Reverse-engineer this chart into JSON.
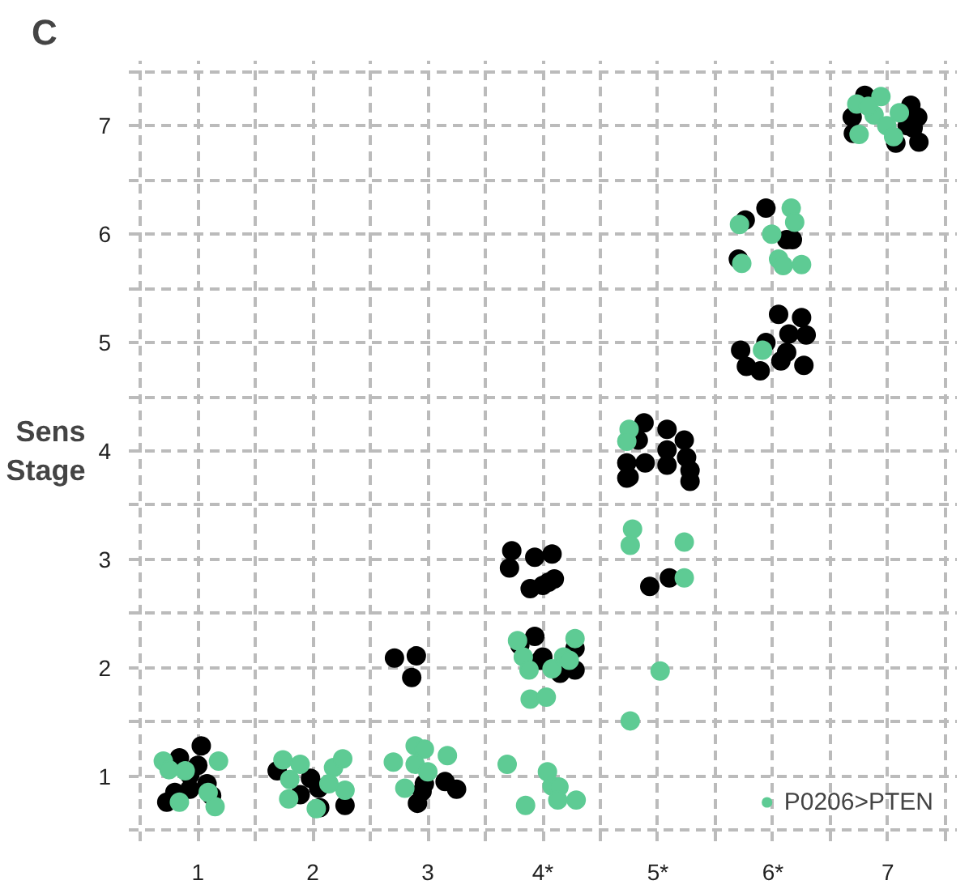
{
  "chart_data": {
    "type": "scatter",
    "title": "C",
    "ylabel": "Sens\nStage",
    "series": [
      {
        "color": "#000000",
        "x": [
          1.03,
          0.84,
          1.0,
          0.93,
          1.08,
          0.8,
          0.93,
          0.73,
          1.12,
          1.69,
          1.98,
          2.05,
          1.89,
          2.06,
          2.28,
          2.71,
          2.9,
          2.86,
          2.97,
          2.95,
          3.15,
          3.25,
          2.91,
          3.73,
          3.93,
          4.08,
          3.71,
          3.89,
          4.0,
          4.1,
          4.05,
          3.93,
          3.8,
          4.0,
          4.28,
          4.15,
          4.28,
          3.98,
          4.93,
          5.1,
          4.88,
          5.08,
          5.23,
          4.83,
          5.08,
          4.73,
          4.89,
          5.08,
          5.25,
          4.75,
          5.28,
          5.28,
          4.73,
          5.94,
          5.76,
          6.12,
          6.17,
          5.7,
          6.05,
          6.25,
          6.14,
          6.29,
          5.94,
          5.72,
          6.12,
          5.77,
          5.89,
          6.07,
          6.27,
          6.8,
          6.69,
          7.2,
          7.26,
          7.17,
          7.22,
          7.07,
          7.27,
          6.7
        ],
        "values": [
          1.28,
          1.17,
          1.1,
          1.01,
          0.93,
          0.85,
          0.88,
          0.76,
          0.82,
          1.05,
          0.98,
          0.89,
          0.83,
          0.71,
          0.73,
          2.09,
          2.11,
          1.91,
          0.93,
          0.86,
          0.95,
          0.88,
          0.75,
          3.08,
          3.02,
          3.05,
          2.92,
          2.73,
          2.76,
          2.82,
          2.79,
          2.29,
          2.21,
          2.1,
          2.18,
          1.95,
          1.98,
          2.07,
          2.75,
          2.83,
          4.26,
          4.2,
          4.1,
          4.1,
          4.01,
          3.89,
          3.89,
          3.87,
          3.94,
          3.76,
          3.82,
          3.72,
          3.75,
          6.24,
          6.13,
          5.95,
          5.95,
          5.77,
          5.26,
          5.23,
          5.08,
          5.07,
          5.0,
          4.93,
          4.91,
          4.78,
          4.74,
          4.83,
          4.79,
          7.28,
          7.08,
          7.19,
          7.08,
          7.0,
          6.98,
          6.84,
          6.85,
          6.93
        ]
      },
      {
        "name": "P0206>PTEN",
        "color": "#5ecb94",
        "x": [
          0.7,
          0.75,
          0.89,
          1.18,
          0.84,
          1.09,
          1.15,
          1.74,
          1.89,
          1.8,
          2.18,
          2.26,
          2.14,
          2.28,
          1.79,
          2.03,
          2.89,
          2.97,
          3.17,
          2.7,
          2.89,
          3.0,
          2.8,
          3.78,
          3.83,
          3.88,
          4.08,
          4.28,
          4.18,
          4.23,
          3.89,
          4.03,
          3.69,
          4.04,
          4.08,
          4.14,
          3.85,
          4.13,
          4.29,
          4.78,
          4.76,
          5.23,
          5.23,
          5.02,
          4.76,
          4.75,
          4.73,
          6.16,
          6.19,
          5.71,
          5.99,
          6.05,
          6.09,
          6.25,
          5.73,
          5.91,
          6.73,
          6.94,
          6.88,
          7.1,
          6.75,
          6.99,
          7.05,
          6.83
        ],
        "values": [
          1.14,
          1.06,
          1.05,
          1.14,
          0.76,
          0.85,
          0.72,
          1.15,
          1.11,
          0.97,
          1.08,
          1.16,
          0.93,
          0.87,
          0.79,
          0.7,
          1.28,
          1.25,
          1.19,
          1.13,
          1.11,
          1.04,
          0.89,
          2.25,
          2.1,
          1.98,
          1.99,
          2.27,
          2.1,
          2.07,
          1.71,
          1.73,
          1.11,
          1.04,
          0.91,
          0.9,
          0.73,
          0.78,
          0.78,
          3.28,
          3.13,
          3.16,
          2.83,
          1.97,
          1.51,
          4.2,
          4.09,
          6.24,
          6.11,
          6.09,
          6.0,
          5.77,
          5.71,
          5.72,
          5.73,
          4.93,
          7.2,
          7.27,
          7.1,
          7.12,
          6.92,
          7.0,
          6.9,
          7.18
        ]
      }
    ],
    "xlim": [
      0.4,
      7.6
    ],
    "ylim": [
      0.4,
      7.6
    ],
    "xticks": [
      {
        "value": 0.5,
        "label": null
      },
      1,
      {
        "value": 1.5,
        "label": null
      },
      2,
      {
        "value": 2.5,
        "label": null
      },
      3,
      {
        "value": 3.5,
        "label": null
      },
      {
        "value": 4,
        "label": "4*"
      },
      {
        "value": 4.5,
        "label": null
      },
      {
        "value": 5,
        "label": "5*"
      },
      {
        "value": 5.5,
        "label": null
      },
      {
        "value": 6,
        "label": "6*"
      },
      {
        "value": 6.5,
        "label": null
      },
      7,
      {
        "value": 7.5,
        "label": null
      }
    ],
    "yticks": [
      {
        "value": 0.5,
        "label": null
      },
      1,
      {
        "value": 1.5,
        "label": null
      },
      2,
      {
        "value": 2.5,
        "label": null
      },
      3,
      {
        "value": 3.5,
        "label": null
      },
      4,
      {
        "value": 4.5,
        "label": null
      },
      5,
      {
        "value": 5.5,
        "label": null
      },
      6,
      {
        "value": 6.5,
        "label": null
      },
      7,
      {
        "value": 7.5,
        "label": null
      }
    ],
    "grid": true,
    "legend": "bottom right",
    "marker": "circle"
  }
}
